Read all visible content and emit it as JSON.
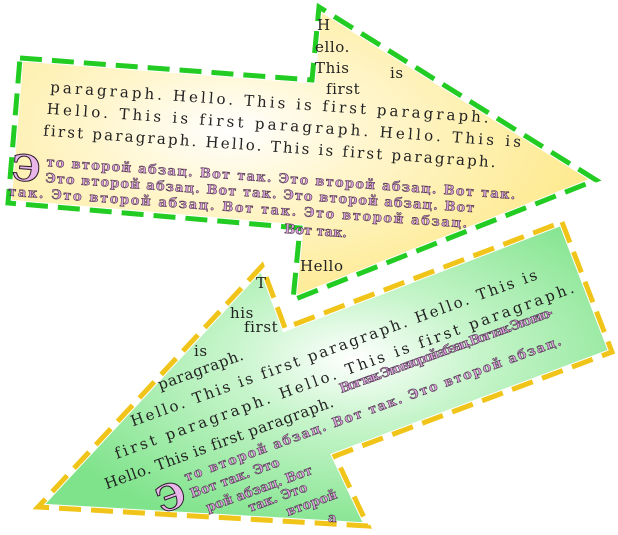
{
  "arrow_top": {
    "en_lines": [
      "H",
      "ello.",
      "This",
      "is",
      "first",
      "paragraph. Hello. This is first paragraph.",
      "Hello. This is first paragraph. Hello. This is",
      "first paragraph. Hello. This is first paragraph."
    ],
    "dropcap": "Э",
    "ru_lines": [
      "то второй абзац. Вот так. Это второй абзац. Вот так.",
      "Это второй абзац. Вот так. Это второй абзац. Вот",
      "так. Это второй абзац. Вот так. Это второй абзац.",
      "Вот так."
    ],
    "tail_word": "Hello",
    "fill_color": "#fde98a",
    "border_color": "#22cc22"
  },
  "arrow_bottom": {
    "en_lines": [
      "T",
      "his",
      "first",
      "is",
      "paragraph.",
      "Hello. This is first paragraph. Hello. This is",
      "first paragraph. Hello. This is first paragraph.",
      "Hello. This is first paragraph."
    ],
    "dropcap": "Э",
    "ru_lines": [
      "то второй абзац. Вот так. Это второй абзац.",
      "Вот так. Это второй абзац. Вот так. Это вто-",
      "Вот так. Это",
      "рой абзац. Вот",
      "так. Это",
      "второй",
      "а"
    ],
    "fill_color": "#7ee38a",
    "border_color": "#f0c419"
  }
}
